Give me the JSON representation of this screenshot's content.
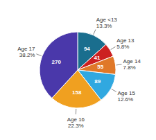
{
  "chart_data": {
    "type": "pie",
    "categories": [
      "Age <13",
      "Age 13",
      "Age 14",
      "Age 15",
      "Age 16",
      "Age 17"
    ],
    "values": [
      94,
      41,
      55,
      89,
      158,
      270
    ],
    "shares": [
      13.3,
      5.8,
      7.8,
      12.6,
      22.3,
      38.2
    ],
    "share_labels": [
      "13.3%",
      "5.8%",
      "7.8%",
      "12.6%",
      "22.3%",
      "38.2%"
    ],
    "colors": [
      "#1a6e8e",
      "#cc2020",
      "#e07828",
      "#30a8e0",
      "#f0a020",
      "#4a38aa"
    ],
    "data_labels": true
  }
}
